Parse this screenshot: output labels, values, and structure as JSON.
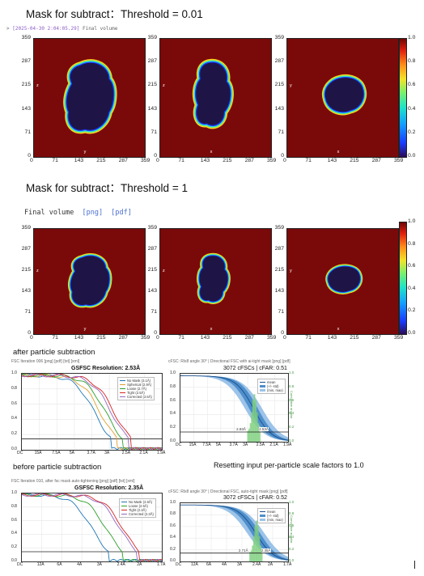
{
  "sections": {
    "mask_001_title": "Mask for subtract：Threshold = 0.01",
    "mask_1_title": "Mask for subtract：Threshold = 1",
    "after_caption": "after particle subtraction",
    "before_caption": "before particle subtraction",
    "reset_note": "Resetting input per-particle scale factors to 1.0"
  },
  "log": {
    "arrow": ">",
    "timestamp": "[2025-04-30 2:04:05.29]",
    "text": "Final volume"
  },
  "final_volume": {
    "label": "Final volume",
    "png": "[png]",
    "pdf": "[pdf]"
  },
  "axis_ticks": [
    "0",
    "71",
    "143",
    "215",
    "287",
    "359"
  ],
  "axis_letters": {
    "p1": {
      "side": "z",
      "bottom": "y"
    },
    "p2": {
      "side": "z",
      "bottom": "x"
    },
    "p3": {
      "side": "y",
      "bottom": "x"
    }
  },
  "colorbar_ticks": [
    "1.0",
    "0.8",
    "0.6",
    "0.4",
    "0.2",
    "0.0"
  ],
  "after": {
    "gsfsc": {
      "header": "FSC Iteration 006 [png] [pdf] [txt] [xml]",
      "title": "GSFSC Resolution: 2.53Å",
      "x_ticks": [
        "DC",
        "15Å",
        "7.5Å",
        "5Å",
        "3.7Å",
        "3Å",
        "2.5Å",
        "2.1Å",
        "1.9Å"
      ],
      "y_ticks": [
        "1.0",
        "0.8",
        "0.6",
        "0.4",
        "0.2",
        "0.0"
      ],
      "legend": [
        {
          "name": "No Mask (3.1Å)",
          "color": "#1f77b4"
        },
        {
          "name": "Spherical (2.9Å)",
          "color": "#e0a030"
        },
        {
          "name": "Loose (2.7Å)",
          "color": "#2ca02c"
        },
        {
          "name": "Tight (2.5Å)",
          "color": "#d62728"
        },
        {
          "name": "Corrected (2.5Å)",
          "color": "#9467bd"
        }
      ]
    },
    "cfsc": {
      "header": "cFSC: Rlx8 angle 30° | Directional FSC with ai-tight mask [png] [pdf]",
      "title": "3072 cFSCs | cFAR: 0.51",
      "x_ticks": [
        "DC",
        "15Å",
        "7.5Å",
        "5Å",
        "3.7Å",
        "3Å",
        "2.5Å",
        "2.1Å",
        "1.9Å"
      ],
      "y_ticks": [
        "1.0",
        "0.8",
        "0.6",
        "0.4",
        "0.2",
        "0.0"
      ],
      "legend": [
        "mean",
        "(+/- std)",
        "(min, max)"
      ],
      "right_label": "Cumulative angular",
      "marker_a": "2.93Å",
      "marker_b": "2.53Å"
    }
  },
  "before": {
    "gsfsc": {
      "header": "FSC Iteration 010, after fsc mask auto-tightening [png] [pdf] [txt] [xml]",
      "title": "GSFSC Resolution: 2.35Å",
      "x_ticks": [
        "DC",
        "12Å",
        "6Å",
        "4Å",
        "3Å",
        "2.4Å",
        "2Å",
        "1.7Å"
      ],
      "y_ticks": [
        "1.0",
        "0.8",
        "0.6",
        "0.4",
        "0.2",
        "0.0"
      ],
      "legend": [
        {
          "name": "No Mask (2.6Å)",
          "color": "#1f77b4"
        },
        {
          "name": "Loose (2.5Å)",
          "color": "#2ca02c"
        },
        {
          "name": "Tight (2.3Å)",
          "color": "#d62728"
        },
        {
          "name": "Corrected (2.3Å)",
          "color": "#9467bd"
        }
      ]
    },
    "cfsc": {
      "header": "cFSC: Rlx8 angle 30° | Directional FSC, auto-tight mask [png] [pdf]",
      "title": "3072 cFSCs | cFAR: 0.52",
      "x_ticks": [
        "DC",
        "12Å",
        "6Å",
        "4Å",
        "3Å",
        "2.4Å",
        "2Å",
        "1.7Å"
      ],
      "y_ticks": [
        "1.0",
        "0.8",
        "0.6",
        "0.4",
        "0.2",
        "0.0"
      ],
      "legend": [
        "mean",
        "(+/- std)",
        "(min, max)"
      ],
      "right_label": "Cumulative angular",
      "marker_a": "2.71Å",
      "marker_b": "2.35Å"
    }
  },
  "colors": {
    "background": "#7a0a0a",
    "blob": "#1f1446",
    "edge_cyan": "#30e0d0"
  }
}
